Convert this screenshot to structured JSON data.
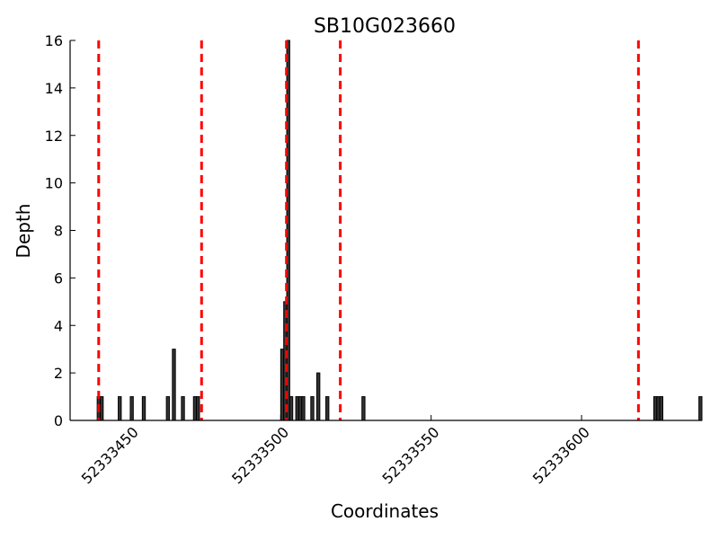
{
  "chart_data": {
    "type": "bar",
    "title": "SB10G023660",
    "xlabel": "Coordinates",
    "ylabel": "Depth",
    "xlim": [
      52333430,
      52333640
    ],
    "ylim": [
      0,
      16
    ],
    "xticks": [
      52333450,
      52333500,
      52333550,
      52333600
    ],
    "yticks": [
      0,
      2,
      4,
      6,
      8,
      10,
      12,
      14,
      16
    ],
    "grid": false,
    "bar_color": "#333333",
    "bar_edge_color": "#000000",
    "marker_color": "#ff0000",
    "bar_width": 1,
    "bars": [
      {
        "x": 52333439,
        "y": 1
      },
      {
        "x": 52333440,
        "y": 1
      },
      {
        "x": 52333446,
        "y": 1
      },
      {
        "x": 52333450,
        "y": 1
      },
      {
        "x": 52333454,
        "y": 1
      },
      {
        "x": 52333462,
        "y": 1
      },
      {
        "x": 52333464,
        "y": 3
      },
      {
        "x": 52333467,
        "y": 1
      },
      {
        "x": 52333471,
        "y": 1
      },
      {
        "x": 52333472,
        "y": 1
      },
      {
        "x": 52333500,
        "y": 3
      },
      {
        "x": 52333501,
        "y": 5
      },
      {
        "x": 52333502,
        "y": 16
      },
      {
        "x": 52333503,
        "y": 1
      },
      {
        "x": 52333505,
        "y": 1
      },
      {
        "x": 52333506,
        "y": 1
      },
      {
        "x": 52333507,
        "y": 1
      },
      {
        "x": 52333510,
        "y": 1
      },
      {
        "x": 52333512,
        "y": 2
      },
      {
        "x": 52333515,
        "y": 1
      },
      {
        "x": 52333527,
        "y": 1
      },
      {
        "x": 52333624,
        "y": 1
      },
      {
        "x": 52333625,
        "y": 1
      },
      {
        "x": 52333626,
        "y": 1
      },
      {
        "x": 52333639,
        "y": 1
      }
    ],
    "markers": [
      52333439.5,
      52333473.7,
      52333501.9,
      52333519.8,
      52333618.9
    ]
  }
}
